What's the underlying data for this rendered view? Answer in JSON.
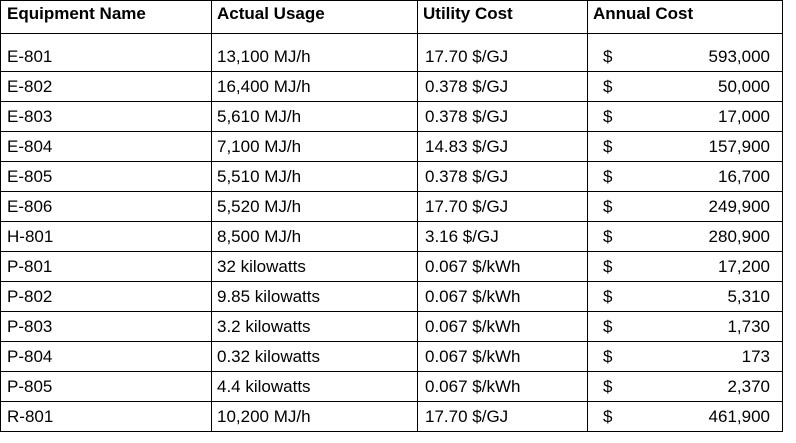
{
  "headers": {
    "equipment": "Equipment Name",
    "usage": "Actual Usage",
    "utility": "Utility Cost",
    "annual": "Annual Cost"
  },
  "rows": [
    {
      "name": "E-801",
      "usage": "13,100  MJ/h",
      "utility": "17.70  $/GJ",
      "currency": "$",
      "annual": "593,000"
    },
    {
      "name": "E-802",
      "usage": "16,400  MJ/h",
      "utility": "0.378  $/GJ",
      "currency": "$",
      "annual": "50,000"
    },
    {
      "name": "E-803",
      "usage": "5,610  MJ/h",
      "utility": "0.378  $/GJ",
      "currency": "$",
      "annual": "17,000"
    },
    {
      "name": "E-804",
      "usage": "7,100  MJ/h",
      "utility": "14.83  $/GJ",
      "currency": "$",
      "annual": "157,900"
    },
    {
      "name": "E-805",
      "usage": "5,510  MJ/h",
      "utility": "0.378  $/GJ",
      "currency": "$",
      "annual": "16,700"
    },
    {
      "name": "E-806",
      "usage": "5,520  MJ/h",
      "utility": "17.70  $/GJ",
      "currency": "$",
      "annual": "249,900"
    },
    {
      "name": "H-801",
      "usage": "8,500  MJ/h",
      "utility": "3.16  $/GJ",
      "currency": "$",
      "annual": "280,900"
    },
    {
      "name": "P-801",
      "usage": "32 kilowatts",
      "utility": "0.067  $/kWh",
      "currency": "$",
      "annual": "17,200"
    },
    {
      "name": "P-802",
      "usage": "9.85 kilowatts",
      "utility": "0.067  $/kWh",
      "currency": "$",
      "annual": "5,310"
    },
    {
      "name": "P-803",
      "usage": "3.2 kilowatts",
      "utility": "0.067  $/kWh",
      "currency": "$",
      "annual": "1,730"
    },
    {
      "name": "P-804",
      "usage": "0.32 kilowatts",
      "utility": "0.067  $/kWh",
      "currency": "$",
      "annual": "173"
    },
    {
      "name": "P-805",
      "usage": "4.4 kilowatts",
      "utility": "0.067  $/kWh",
      "currency": "$",
      "annual": "2,370"
    },
    {
      "name": "R-801",
      "usage": "10,200 MJ/h",
      "utility": "17.70  $/GJ",
      "currency": "$",
      "annual": "461,900"
    }
  ]
}
